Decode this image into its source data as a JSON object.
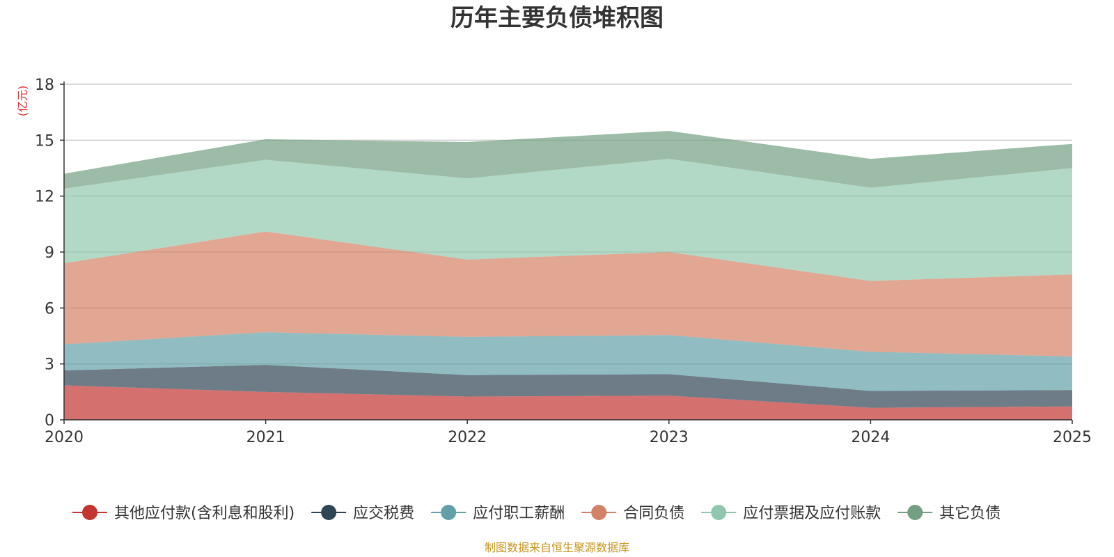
{
  "chart_data": {
    "type": "area",
    "stacked": true,
    "title": "历年主要负债堆积图",
    "unit_label": "(亿元)",
    "x": [
      "2020",
      "2021",
      "2022",
      "2023",
      "2024",
      "2025"
    ],
    "ylim": [
      0,
      18
    ],
    "yticks": [
      0,
      3,
      6,
      9,
      12,
      15,
      18
    ],
    "grid": true,
    "legend_position": "bottom",
    "series": [
      {
        "name": "其他应付款(含利息和股利)",
        "values": [
          1.85,
          1.5,
          1.25,
          1.3,
          0.65,
          0.72
        ],
        "color": "#c23531"
      },
      {
        "name": "应交税费",
        "values": [
          0.8,
          1.45,
          1.15,
          1.15,
          0.9,
          0.88
        ],
        "color": "#2f4554"
      },
      {
        "name": "应付职工薪酬",
        "values": [
          1.4,
          1.75,
          2.05,
          2.1,
          2.1,
          1.8
        ],
        "color": "#61a0a8"
      },
      {
        "name": "合同负债",
        "values": [
          4.35,
          5.4,
          4.15,
          4.45,
          3.8,
          4.4
        ],
        "color": "#d48265"
      },
      {
        "name": "应付票据及应付账款",
        "values": [
          4.0,
          3.85,
          4.35,
          5.0,
          5.0,
          5.7
        ],
        "color": "#91c7ae"
      },
      {
        "name": "其它负债",
        "values": [
          0.8,
          1.1,
          1.95,
          1.5,
          1.55,
          1.3
        ],
        "color": "#749f83"
      }
    ],
    "source": "制图数据来自恒生聚源数据库"
  },
  "colors": {
    "title": "#333333",
    "unit": "#e03030",
    "source": "#c8961e",
    "axis": "#333333",
    "grid": "#cccccc"
  }
}
